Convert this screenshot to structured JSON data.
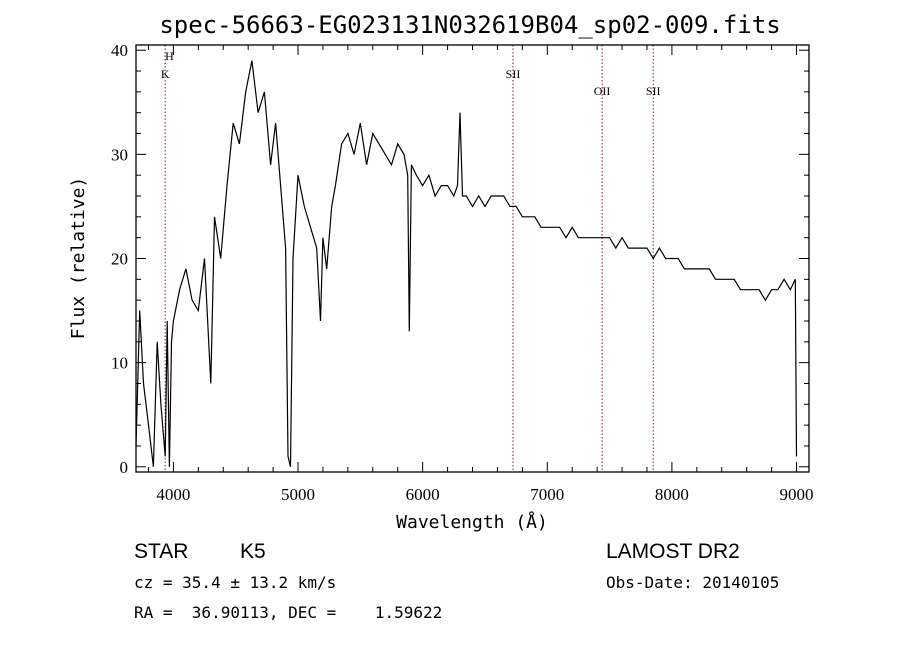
{
  "chart_data": {
    "type": "line",
    "title": "spec-56663-EG023131N032619B04_sp02-009.fits",
    "xlabel": "Wavelength (Å)",
    "ylabel": "Flux (relative)",
    "xlim": [
      3700,
      9100
    ],
    "ylim": [
      -0.5,
      40.5
    ],
    "xticks": [
      4000,
      5000,
      6000,
      7000,
      8000,
      9000
    ],
    "yticks": [
      0,
      10,
      20,
      30,
      40
    ],
    "grid": false,
    "legend": "none",
    "line_color": "#000000",
    "marker_color": "#8b1a1a",
    "spectral_lines": [
      {
        "label": "H",
        "wavelength": 3968
      },
      {
        "label": "K",
        "wavelength": 3934
      },
      {
        "label": "SII",
        "wavelength": 6725
      },
      {
        "label": "OII",
        "wavelength": 7440
      },
      {
        "label": "SII",
        "wavelength": 7850
      }
    ],
    "series": [
      {
        "x": [
          3700,
          3730,
          3760,
          3800,
          3840,
          3870,
          3900,
          3934,
          3950,
          3968,
          3985,
          4000,
          4050,
          4100,
          4150,
          4200,
          4250,
          4300,
          4330,
          4380,
          4430,
          4480,
          4530,
          4580,
          4630,
          4680,
          4730,
          4780,
          4820,
          4860,
          4900,
          4920,
          4940,
          4960,
          5000,
          5050,
          5100,
          5150,
          5180,
          5200,
          5230,
          5270,
          5300,
          5350,
          5400,
          5450,
          5500,
          5550,
          5600,
          5650,
          5700,
          5750,
          5800,
          5850,
          5880,
          5893,
          5910,
          5950,
          6000,
          6050,
          6100,
          6150,
          6200,
          6250,
          6280,
          6300,
          6320,
          6350,
          6400,
          6450,
          6500,
          6550,
          6600,
          6650,
          6700,
          6750,
          6800,
          6850,
          6900,
          6950,
          7000,
          7050,
          7100,
          7150,
          7200,
          7250,
          7300,
          7350,
          7400,
          7450,
          7500,
          7550,
          7600,
          7650,
          7700,
          7750,
          7800,
          7850,
          7900,
          7950,
          8000,
          8050,
          8100,
          8150,
          8200,
          8250,
          8300,
          8350,
          8400,
          8450,
          8500,
          8550,
          8600,
          8650,
          8700,
          8750,
          8800,
          8850,
          8900,
          8950,
          8990,
          9000
        ],
        "y": [
          2,
          15,
          8,
          4,
          0,
          12,
          6,
          1,
          14,
          0,
          12,
          14,
          17,
          19,
          16,
          15,
          20,
          8,
          24,
          20,
          27,
          33,
          31,
          36,
          39,
          34,
          36,
          29,
          33,
          27,
          21,
          1,
          0,
          20,
          28,
          25,
          23,
          21,
          14,
          22,
          19,
          25,
          27,
          31,
          32,
          30,
          33,
          29,
          32,
          31,
          30,
          29,
          31,
          30,
          28,
          13,
          29,
          28,
          27,
          28,
          26,
          27,
          27,
          26,
          27,
          34,
          26,
          26,
          25,
          26,
          25,
          26,
          26,
          26,
          25,
          25,
          24,
          24,
          24,
          23,
          23,
          23,
          23,
          22,
          23,
          22,
          22,
          22,
          22,
          22,
          22,
          21,
          22,
          21,
          21,
          21,
          21,
          20,
          21,
          20,
          20,
          20,
          19,
          19,
          19,
          19,
          19,
          18,
          18,
          18,
          18,
          17,
          17,
          17,
          17,
          16,
          17,
          17,
          18,
          17,
          18,
          1
        ]
      }
    ]
  },
  "info": {
    "object_class": "STAR",
    "subclass": "K5",
    "survey": "LAMOST DR2",
    "redshift": "cz = 35.4 ± 13.2 km/s",
    "obs_date": "Obs-Date: 20140105",
    "coords": "RA =  36.90113, DEC =    1.59622"
  }
}
